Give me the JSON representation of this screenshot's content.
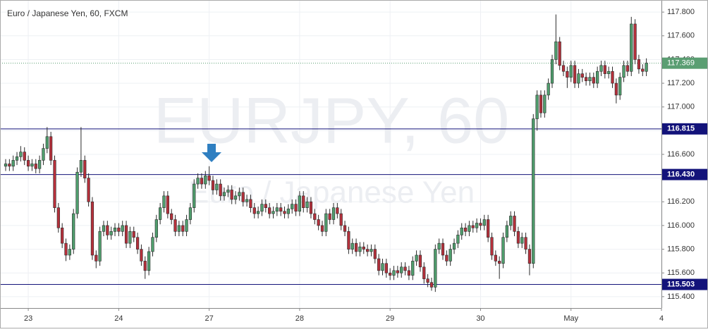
{
  "chart_data": {
    "type": "candlestick",
    "title": "Euro / Japanese Yen, 60, FXCM",
    "watermark": {
      "symbol": "EURJPY, 60",
      "description": "Euro / Japanese Yen"
    },
    "up_color": "#4f9e6d",
    "down_color": "#b5303b",
    "wick_color": "#2b2b2b",
    "grid": true,
    "ylim": [
      115.304,
      117.902
    ],
    "yticks": [
      {
        "value": 115.4,
        "label": "115.400"
      },
      {
        "value": 115.6,
        "label": "115.600"
      },
      {
        "value": 115.8,
        "label": "115.800"
      },
      {
        "value": 116.0,
        "label": "116.000"
      },
      {
        "value": 116.2,
        "label": "116.200"
      },
      {
        "value": 116.4,
        "label": "116.400"
      },
      {
        "value": 116.6,
        "label": "116.600"
      },
      {
        "value": 116.8,
        "label": "116.800"
      },
      {
        "value": 117.0,
        "label": "117.000"
      },
      {
        "value": 117.2,
        "label": "117.200"
      },
      {
        "value": 117.4,
        "label": "117.400"
      },
      {
        "value": 117.6,
        "label": "117.600"
      },
      {
        "value": 117.8,
        "label": "117.800"
      }
    ],
    "xlim": [
      -1.5,
      174
    ],
    "xticks": [
      {
        "value": 6,
        "label": "23"
      },
      {
        "value": 30,
        "label": "24"
      },
      {
        "value": 54,
        "label": "27"
      },
      {
        "value": 78,
        "label": "28"
      },
      {
        "value": 102,
        "label": "29"
      },
      {
        "value": 126,
        "label": "30"
      },
      {
        "value": 150,
        "label": "May"
      },
      {
        "value": 174,
        "label": "4"
      }
    ],
    "levels": [
      {
        "value": 116.815,
        "label": "116.815"
      },
      {
        "value": 116.43,
        "label": "116.430"
      },
      {
        "value": 115.503,
        "label": "115.503"
      }
    ],
    "level_color": "#13137a",
    "price_line": {
      "value": 117.369,
      "label": "117.369",
      "color": "#5a9e72"
    },
    "candles": [
      [
        116.5,
        116.56,
        116.46,
        116.52
      ],
      [
        116.52,
        116.56,
        116.46,
        116.5
      ],
      [
        116.5,
        116.59,
        116.46,
        116.55
      ],
      [
        116.55,
        116.62,
        116.51,
        116.58
      ],
      [
        116.58,
        116.67,
        116.54,
        116.62
      ],
      [
        116.62,
        116.66,
        116.51,
        116.55
      ],
      [
        116.55,
        116.59,
        116.46,
        116.5
      ],
      [
        116.5,
        116.56,
        116.46,
        116.52
      ],
      [
        116.52,
        116.56,
        116.44,
        116.48
      ],
      [
        116.48,
        116.59,
        116.44,
        116.55
      ],
      [
        116.55,
        116.69,
        116.51,
        116.65
      ],
      [
        116.65,
        116.83,
        116.61,
        116.75
      ],
      [
        116.75,
        116.79,
        116.51,
        116.55
      ],
      [
        116.55,
        116.59,
        116.11,
        116.15
      ],
      [
        116.15,
        116.19,
        115.94,
        115.98
      ],
      [
        115.98,
        116.02,
        115.81,
        115.85
      ],
      [
        115.85,
        115.89,
        115.7,
        115.75
      ],
      [
        115.75,
        115.84,
        115.71,
        115.8
      ],
      [
        115.8,
        116.14,
        115.76,
        116.1
      ],
      [
        116.1,
        116.49,
        116.06,
        116.45
      ],
      [
        116.45,
        116.83,
        116.41,
        116.55
      ],
      [
        116.55,
        116.59,
        116.36,
        116.4
      ],
      [
        116.4,
        116.44,
        116.16,
        116.2
      ],
      [
        116.2,
        116.24,
        115.71,
        115.75
      ],
      [
        115.75,
        115.79,
        115.64,
        115.7
      ],
      [
        115.7,
        115.99,
        115.66,
        115.95
      ],
      [
        115.95,
        116.04,
        115.91,
        116.0
      ],
      [
        116.0,
        116.04,
        115.88,
        115.92
      ],
      [
        115.92,
        115.99,
        115.88,
        115.95
      ],
      [
        115.95,
        116.02,
        115.91,
        115.98
      ],
      [
        115.98,
        116.02,
        115.91,
        115.95
      ],
      [
        115.95,
        116.04,
        115.91,
        116.0
      ],
      [
        116.0,
        116.04,
        115.81,
        115.85
      ],
      [
        115.85,
        115.99,
        115.81,
        115.95
      ],
      [
        115.95,
        115.99,
        115.86,
        115.9
      ],
      [
        115.9,
        115.94,
        115.76,
        115.8
      ],
      [
        115.8,
        115.84,
        115.66,
        115.7
      ],
      [
        115.7,
        115.74,
        115.55,
        115.62
      ],
      [
        115.62,
        115.82,
        115.58,
        115.78
      ],
      [
        115.78,
        115.94,
        115.74,
        115.9
      ],
      [
        115.9,
        116.09,
        115.86,
        116.05
      ],
      [
        116.05,
        116.19,
        116.01,
        116.15
      ],
      [
        116.15,
        116.29,
        116.11,
        116.25
      ],
      [
        116.25,
        116.29,
        116.06,
        116.1
      ],
      [
        116.1,
        116.14,
        116.01,
        116.05
      ],
      [
        116.05,
        116.09,
        115.91,
        115.95
      ],
      [
        115.95,
        116.04,
        115.91,
        116.0
      ],
      [
        116.0,
        116.04,
        115.91,
        115.95
      ],
      [
        115.95,
        116.09,
        115.91,
        116.05
      ],
      [
        116.05,
        116.19,
        116.01,
        116.15
      ],
      [
        116.15,
        116.39,
        116.11,
        116.35
      ],
      [
        116.35,
        116.44,
        116.31,
        116.4
      ],
      [
        116.4,
        116.44,
        116.31,
        116.35
      ],
      [
        116.35,
        116.46,
        116.31,
        116.42
      ],
      [
        116.42,
        116.5,
        116.34,
        116.38
      ],
      [
        116.38,
        116.42,
        116.26,
        116.3
      ],
      [
        116.3,
        116.39,
        116.26,
        116.35
      ],
      [
        116.35,
        116.39,
        116.21,
        116.25
      ],
      [
        116.25,
        116.32,
        116.21,
        116.28
      ],
      [
        116.28,
        116.34,
        116.24,
        116.3
      ],
      [
        116.3,
        116.34,
        116.18,
        116.22
      ],
      [
        116.22,
        116.29,
        116.18,
        116.25
      ],
      [
        116.25,
        116.32,
        116.21,
        116.28
      ],
      [
        116.28,
        116.32,
        116.16,
        116.2
      ],
      [
        116.2,
        116.26,
        116.16,
        116.22
      ],
      [
        116.22,
        116.26,
        116.11,
        116.15
      ],
      [
        116.15,
        116.19,
        116.06,
        116.1
      ],
      [
        116.1,
        116.16,
        116.06,
        116.12
      ],
      [
        116.12,
        116.22,
        116.08,
        116.18
      ],
      [
        116.18,
        116.22,
        116.11,
        116.15
      ],
      [
        116.15,
        116.19,
        116.06,
        116.1
      ],
      [
        116.1,
        116.16,
        116.06,
        116.12
      ],
      [
        116.12,
        116.19,
        116.08,
        116.15
      ],
      [
        116.15,
        116.19,
        116.08,
        116.12
      ],
      [
        116.12,
        116.16,
        116.06,
        116.1
      ],
      [
        116.1,
        116.18,
        116.06,
        116.14
      ],
      [
        116.14,
        116.22,
        116.1,
        116.18
      ],
      [
        116.18,
        116.22,
        116.08,
        116.12
      ],
      [
        116.12,
        116.29,
        116.08,
        116.25
      ],
      [
        116.25,
        116.29,
        116.11,
        116.15
      ],
      [
        116.15,
        116.24,
        116.11,
        116.2
      ],
      [
        116.2,
        116.24,
        116.06,
        116.1
      ],
      [
        116.1,
        116.14,
        116.01,
        116.05
      ],
      [
        116.05,
        116.09,
        115.96,
        116.0
      ],
      [
        116.0,
        116.04,
        115.91,
        115.95
      ],
      [
        115.95,
        116.14,
        115.91,
        116.1
      ],
      [
        116.1,
        116.14,
        116.01,
        116.05
      ],
      [
        116.05,
        116.19,
        116.01,
        116.15
      ],
      [
        116.15,
        116.19,
        116.06,
        116.1
      ],
      [
        116.1,
        116.14,
        115.96,
        116.0
      ],
      [
        116.0,
        116.04,
        115.91,
        115.95
      ],
      [
        115.95,
        115.99,
        115.76,
        115.8
      ],
      [
        115.8,
        115.89,
        115.76,
        115.85
      ],
      [
        115.85,
        115.89,
        115.74,
        115.78
      ],
      [
        115.78,
        115.86,
        115.74,
        115.82
      ],
      [
        115.82,
        115.86,
        115.76,
        115.8
      ],
      [
        115.8,
        115.84,
        115.74,
        115.78
      ],
      [
        115.78,
        115.84,
        115.74,
        115.8
      ],
      [
        115.8,
        115.84,
        115.68,
        115.72
      ],
      [
        115.72,
        115.76,
        115.58,
        115.62
      ],
      [
        115.62,
        115.72,
        115.58,
        115.68
      ],
      [
        115.68,
        115.72,
        115.56,
        115.6
      ],
      [
        115.6,
        115.64,
        115.54,
        115.58
      ],
      [
        115.58,
        115.66,
        115.54,
        115.62
      ],
      [
        115.62,
        115.66,
        115.56,
        115.6
      ],
      [
        115.6,
        115.69,
        115.56,
        115.65
      ],
      [
        115.65,
        115.69,
        115.58,
        115.62
      ],
      [
        115.62,
        115.66,
        115.54,
        115.58
      ],
      [
        115.58,
        115.74,
        115.54,
        115.7
      ],
      [
        115.7,
        115.79,
        115.66,
        115.75
      ],
      [
        115.75,
        115.79,
        115.61,
        115.65
      ],
      [
        115.65,
        115.69,
        115.51,
        115.55
      ],
      [
        115.55,
        115.59,
        115.48,
        115.52
      ],
      [
        115.52,
        115.56,
        115.45,
        115.48
      ],
      [
        115.48,
        115.84,
        115.44,
        115.8
      ],
      [
        115.8,
        115.89,
        115.76,
        115.85
      ],
      [
        115.85,
        115.89,
        115.71,
        115.75
      ],
      [
        115.75,
        115.79,
        115.66,
        115.7
      ],
      [
        115.7,
        115.84,
        115.66,
        115.8
      ],
      [
        115.8,
        115.89,
        115.76,
        115.85
      ],
      [
        115.85,
        115.96,
        115.81,
        115.92
      ],
      [
        115.92,
        116.02,
        115.88,
        115.98
      ],
      [
        115.98,
        116.02,
        115.91,
        115.95
      ],
      [
        115.95,
        116.04,
        115.91,
        116.0
      ],
      [
        116.0,
        116.04,
        115.94,
        115.98
      ],
      [
        115.98,
        116.06,
        115.94,
        116.02
      ],
      [
        116.02,
        116.06,
        115.96,
        116.0
      ],
      [
        116.0,
        116.09,
        115.96,
        116.05
      ],
      [
        116.05,
        116.09,
        115.86,
        115.9
      ],
      [
        115.9,
        115.94,
        115.71,
        115.75
      ],
      [
        115.75,
        115.79,
        115.66,
        115.7
      ],
      [
        115.7,
        115.74,
        115.55,
        115.68
      ],
      [
        115.68,
        115.94,
        115.64,
        115.9
      ],
      [
        115.9,
        116.04,
        115.86,
        116.0
      ],
      [
        116.0,
        116.12,
        115.96,
        116.08
      ],
      [
        116.08,
        116.12,
        115.91,
        115.95
      ],
      [
        115.95,
        115.99,
        115.81,
        115.85
      ],
      [
        115.85,
        115.94,
        115.81,
        115.9
      ],
      [
        115.9,
        115.94,
        115.76,
        115.8
      ],
      [
        115.8,
        115.84,
        115.58,
        115.68
      ],
      [
        115.68,
        116.94,
        115.64,
        116.9
      ],
      [
        116.9,
        117.14,
        116.8,
        117.1
      ],
      [
        117.1,
        117.14,
        116.91,
        116.95
      ],
      [
        116.95,
        117.14,
        116.91,
        117.1
      ],
      [
        117.1,
        117.24,
        117.06,
        117.2
      ],
      [
        117.2,
        117.44,
        117.16,
        117.4
      ],
      [
        117.4,
        117.78,
        117.36,
        117.55
      ],
      [
        117.55,
        117.59,
        117.31,
        117.35
      ],
      [
        117.35,
        117.39,
        117.26,
        117.3
      ],
      [
        117.3,
        117.34,
        117.16,
        117.25
      ],
      [
        117.25,
        117.39,
        117.21,
        117.35
      ],
      [
        117.35,
        117.39,
        117.16,
        117.2
      ],
      [
        117.2,
        117.32,
        117.16,
        117.28
      ],
      [
        117.28,
        117.32,
        117.21,
        117.25
      ],
      [
        117.25,
        117.29,
        117.18,
        117.22
      ],
      [
        117.22,
        117.29,
        117.18,
        117.25
      ],
      [
        117.25,
        117.29,
        117.16,
        117.2
      ],
      [
        117.2,
        117.34,
        117.16,
        117.3
      ],
      [
        117.3,
        117.39,
        117.26,
        117.35
      ],
      [
        117.35,
        117.39,
        117.24,
        117.28
      ],
      [
        117.28,
        117.34,
        117.24,
        117.3
      ],
      [
        117.3,
        117.34,
        117.16,
        117.2
      ],
      [
        117.2,
        117.24,
        117.03,
        117.1
      ],
      [
        117.1,
        117.29,
        117.06,
        117.25
      ],
      [
        117.25,
        117.39,
        117.21,
        117.35
      ],
      [
        117.35,
        117.39,
        117.26,
        117.3
      ],
      [
        117.3,
        117.76,
        117.26,
        117.7
      ],
      [
        117.7,
        117.74,
        117.36,
        117.4
      ],
      [
        117.4,
        117.44,
        117.28,
        117.32
      ],
      [
        117.32,
        117.36,
        117.26,
        117.3
      ],
      [
        117.3,
        117.41,
        117.26,
        117.37
      ]
    ]
  }
}
